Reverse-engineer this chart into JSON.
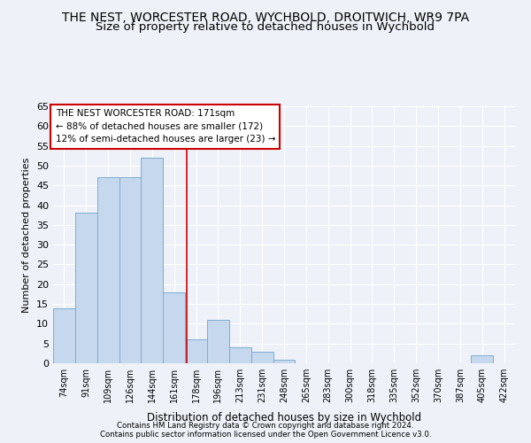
{
  "title": "THE NEST, WORCESTER ROAD, WYCHBOLD, DROITWICH, WR9 7PA",
  "subtitle": "Size of property relative to detached houses in Wychbold",
  "xlabel": "Distribution of detached houses by size in Wychbold",
  "ylabel": "Number of detached properties",
  "bar_color": "#c5d8ed",
  "bar_edge_color": "#7dadd4",
  "categories": [
    "74sqm",
    "91sqm",
    "109sqm",
    "126sqm",
    "144sqm",
    "161sqm",
    "178sqm",
    "196sqm",
    "213sqm",
    "231sqm",
    "248sqm",
    "265sqm",
    "283sqm",
    "300sqm",
    "318sqm",
    "335sqm",
    "352sqm",
    "370sqm",
    "387sqm",
    "405sqm",
    "422sqm"
  ],
  "values": [
    14,
    38,
    47,
    47,
    52,
    18,
    6,
    11,
    4,
    3,
    1,
    0,
    0,
    0,
    0,
    0,
    0,
    0,
    0,
    2,
    0
  ],
  "ylim": [
    0,
    65
  ],
  "yticks": [
    0,
    5,
    10,
    15,
    20,
    25,
    30,
    35,
    40,
    45,
    50,
    55,
    60,
    65
  ],
  "annotation_title": "THE NEST WORCESTER ROAD: 171sqm",
  "annotation_line1": "← 88% of detached houses are smaller (172)",
  "annotation_line2": "12% of semi-detached houses are larger (23) →",
  "annotation_box_color": "#ffffff",
  "annotation_box_edge": "#cc0000",
  "footer1": "Contains HM Land Registry data © Crown copyright and database right 2024.",
  "footer2": "Contains public sector information licensed under the Open Government Licence v3.0.",
  "background_color": "#eef2f8",
  "grid_color": "#ffffff",
  "title_fontsize": 10,
  "subtitle_fontsize": 9.5
}
